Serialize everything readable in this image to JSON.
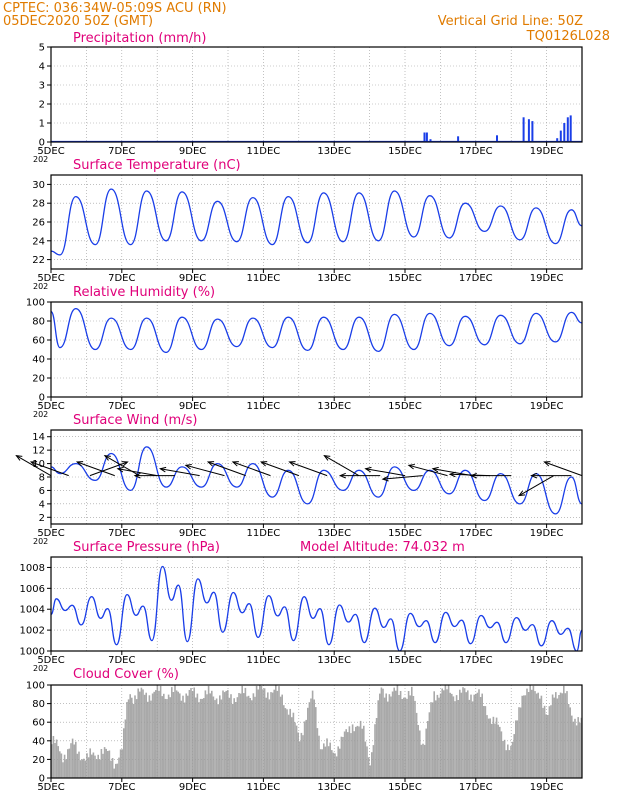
{
  "header": {
    "line1": "CPTEC:   036:34W-05:09S   ACU (RN)",
    "line2": "05DEC2020 50Z (GMT)",
    "grid_note": "Vertical Grid Line: 50Z",
    "run_code": "TQ0126L028"
  },
  "colors": {
    "header": "#e07b00",
    "panel_title": "#e0007a",
    "series": "#1a3ee8",
    "cloud": "#a9a9a9",
    "wind_arrow": "#000000",
    "grid": "#9a9a9a"
  },
  "chart_data": [
    {
      "type": "bar",
      "title": "Precipitation (mm/h)",
      "ylim": [
        0,
        5
      ],
      "y_ticks": [
        "0",
        "1",
        "2",
        "3",
        "4",
        "5"
      ],
      "x_ticks": [
        "5DEC",
        "7DEC",
        "9DEC",
        "11DEC",
        "13DEC",
        "15DEC",
        "17DEC",
        "19DEC"
      ],
      "year_label": "202",
      "x_range_days": [
        0,
        15
      ],
      "bars": [
        {
          "x": 10.55,
          "value": 0.5
        },
        {
          "x": 10.62,
          "value": 0.5
        },
        {
          "x": 10.72,
          "value": 0.15
        },
        {
          "x": 11.3,
          "value": 0.05
        },
        {
          "x": 11.5,
          "value": 0.3
        },
        {
          "x": 12.0,
          "value": 0.05
        },
        {
          "x": 12.6,
          "value": 0.35
        },
        {
          "x": 13.35,
          "value": 1.3
        },
        {
          "x": 13.5,
          "value": 1.2
        },
        {
          "x": 13.6,
          "value": 1.1
        },
        {
          "x": 14.3,
          "value": 0.2
        },
        {
          "x": 14.4,
          "value": 0.6
        },
        {
          "x": 14.5,
          "value": 1.0
        },
        {
          "x": 14.6,
          "value": 1.3
        },
        {
          "x": 14.68,
          "value": 1.4
        }
      ]
    },
    {
      "type": "line",
      "title": "Surface Temperature (nC)",
      "ylim": [
        21,
        31
      ],
      "y_ticks": [
        "22",
        "24",
        "26",
        "28",
        "30"
      ],
      "x_ticks": [
        "5DEC",
        "7DEC",
        "9DEC",
        "11DEC",
        "13DEC",
        "15DEC",
        "17DEC",
        "19DEC"
      ],
      "year_label": "202",
      "x_range_days": [
        0,
        15
      ],
      "series": [
        {
          "daily_min": [
            22.5,
            23.6,
            23.6,
            24.0,
            24.0,
            23.9,
            23.6,
            23.8,
            23.9,
            24.0,
            24.4,
            24.3,
            25.0,
            24.1,
            23.7
          ],
          "daily_max": [
            28.7,
            29.5,
            29.3,
            29.2,
            28.2,
            28.6,
            28.7,
            29.1,
            29.1,
            29.3,
            28.8,
            28.0,
            27.7,
            27.5,
            27.3
          ],
          "start": 22.9,
          "end": 25.6
        }
      ]
    },
    {
      "type": "line",
      "title": "Relative Humidity (%)",
      "ylim": [
        0,
        100
      ],
      "y_ticks": [
        "0",
        "20",
        "40",
        "60",
        "80",
        "100"
      ],
      "x_ticks": [
        "5DEC",
        "7DEC",
        "9DEC",
        "11DEC",
        "13DEC",
        "15DEC",
        "17DEC",
        "19DEC"
      ],
      "year_label": "202",
      "x_range_days": [
        0,
        15
      ],
      "series": [
        {
          "daily_min": [
            52,
            50,
            50,
            47,
            50,
            53,
            52,
            49,
            50,
            48,
            50,
            54,
            55,
            56,
            58
          ],
          "daily_max": [
            93,
            83,
            83,
            84,
            82,
            83,
            84,
            84,
            84,
            87,
            88,
            85,
            86,
            88,
            89
          ],
          "start": 90,
          "end": 78
        }
      ]
    },
    {
      "type": "line",
      "title": "Surface Wind (m/s)",
      "ylim": [
        1,
        15
      ],
      "y_ticks": [
        "2",
        "4",
        "6",
        "8",
        "10",
        "12",
        "14"
      ],
      "x_ticks": [
        "5DEC",
        "7DEC",
        "9DEC",
        "11DEC",
        "13DEC",
        "15DEC",
        "17DEC",
        "19DEC"
      ],
      "year_label": "202",
      "x_range_days": [
        0,
        15
      ],
      "series": [
        {
          "daily_min": [
            8.5,
            7.5,
            6.0,
            6.5,
            6.5,
            6.5,
            5.0,
            4.0,
            6.0,
            5.0,
            6.0,
            5.5,
            4.5,
            4.0,
            2.5
          ],
          "daily_max": [
            10.0,
            11.5,
            12.5,
            9.5,
            10.0,
            10.0,
            9.0,
            9.0,
            9.0,
            9.5,
            9.0,
            9.0,
            8.5,
            8.5,
            8.0
          ],
          "start": 9.5,
          "end": 4.0
        }
      ],
      "wind_vectors": [
        {
          "x": 0.0,
          "dir_deg": 150
        },
        {
          "x": 0.5,
          "dir_deg": 160
        },
        {
          "x": 1.1,
          "dir_deg": 20
        },
        {
          "x": 1.8,
          "dir_deg": 160
        },
        {
          "x": 2.5,
          "dir_deg": 150
        },
        {
          "x": 3.0,
          "dir_deg": 170
        },
        {
          "x": 3.5,
          "dir_deg": 180
        },
        {
          "x": 4.2,
          "dir_deg": 170
        },
        {
          "x": 4.9,
          "dir_deg": 165
        },
        {
          "x": 5.5,
          "dir_deg": 160
        },
        {
          "x": 6.2,
          "dir_deg": 160
        },
        {
          "x": 7.0,
          "dir_deg": 160
        },
        {
          "x": 7.8,
          "dir_deg": 160
        },
        {
          "x": 8.7,
          "dir_deg": 150
        },
        {
          "x": 9.3,
          "dir_deg": 180
        },
        {
          "x": 10.0,
          "dir_deg": 170
        },
        {
          "x": 10.5,
          "dir_deg": 185
        },
        {
          "x": 11.2,
          "dir_deg": 165
        },
        {
          "x": 11.9,
          "dir_deg": 170
        },
        {
          "x": 12.4,
          "dir_deg": 178
        },
        {
          "x": 13.0,
          "dir_deg": 180
        },
        {
          "x": 14.2,
          "dir_deg": 210
        },
        {
          "x": 14.7,
          "dir_deg": 180
        },
        {
          "x": 15.0,
          "dir_deg": 160
        }
      ]
    },
    {
      "type": "line",
      "title": "Surface Pressure (hPa)",
      "ylim": [
        1000,
        1009
      ],
      "y_ticks": [
        "1000",
        "1002",
        "1004",
        "1006",
        "1008"
      ],
      "x_ticks": [
        "5DEC",
        "7DEC",
        "9DEC",
        "11DEC",
        "13DEC",
        "15DEC",
        "17DEC",
        "19DEC"
      ],
      "year_label": "202",
      "x_range_days": [
        0,
        15
      ],
      "model_altitude": "Model Altitude: 74.032 m",
      "series": [
        {
          "daily_max": [
            1005.0,
            1005.2,
            1005.4,
            1008.1,
            1006.9,
            1005.6,
            1005.3,
            1005.2,
            1004.4,
            1004.1,
            1003.6,
            1003.7,
            1003.4,
            1003.2,
            1002.9
          ],
          "daily_min": [
            1002.5,
            1000.6,
            1001.0,
            1000.9,
            1001.8,
            1001.3,
            1001.0,
            1000.6,
            1000.8,
            1000.0,
            1000.8,
            1000.7,
            1000.8,
            1000.5,
            1000.0
          ],
          "start": 1003.5,
          "end": 1002.0
        }
      ]
    },
    {
      "type": "area",
      "title": "Cloud Cover (%)",
      "ylim": [
        0,
        100
      ],
      "y_ticks": [
        "0",
        "20",
        "40",
        "60",
        "80",
        "100"
      ],
      "x_ticks": [
        "5DEC",
        "7DEC",
        "9DEC",
        "11DEC",
        "13DEC",
        "15DEC",
        "17DEC",
        "19DEC"
      ],
      "x_range_days": [
        0,
        15
      ],
      "series": [
        {
          "x": [
            0,
            0.3,
            0.6,
            1.0,
            1.4,
            1.8,
            2.0,
            2.1,
            2.2,
            2.3,
            2.5,
            3.0,
            4.0,
            5.0,
            5.5,
            6.0,
            6.5,
            7.0,
            7.4,
            7.6,
            8.0,
            8.3,
            8.5,
            8.8,
            9.0,
            9.3,
            9.6,
            9.9,
            10.2,
            10.5,
            10.8,
            11.0,
            11.5,
            12.0,
            12.5,
            13.0,
            13.3,
            13.6,
            13.8,
            14.0,
            14.2,
            14.5,
            14.7,
            15.0
          ],
          "values": [
            40,
            25,
            35,
            20,
            30,
            18,
            30,
            70,
            95,
            88,
            90,
            92,
            90,
            88,
            90,
            95,
            90,
            45,
            90,
            35,
            30,
            45,
            60,
            50,
            20,
            95,
            90,
            92,
            88,
            35,
            90,
            95,
            90,
            92,
            60,
            30,
            95,
            92,
            95,
            60,
            95,
            90,
            70,
            55
          ]
        }
      ]
    }
  ]
}
